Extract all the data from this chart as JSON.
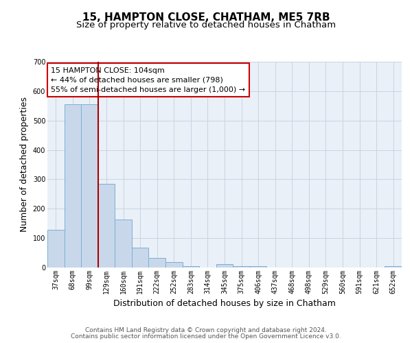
{
  "title": "15, HAMPTON CLOSE, CHATHAM, ME5 7RB",
  "subtitle": "Size of property relative to detached houses in Chatham",
  "xlabel": "Distribution of detached houses by size in Chatham",
  "ylabel": "Number of detached properties",
  "categories": [
    "37sqm",
    "68sqm",
    "99sqm",
    "129sqm",
    "160sqm",
    "191sqm",
    "222sqm",
    "252sqm",
    "283sqm",
    "314sqm",
    "345sqm",
    "375sqm",
    "406sqm",
    "437sqm",
    "468sqm",
    "498sqm",
    "529sqm",
    "560sqm",
    "591sqm",
    "621sqm",
    "652sqm"
  ],
  "values": [
    128,
    555,
    555,
    285,
    163,
    68,
    33,
    18,
    5,
    0,
    11,
    5,
    5,
    0,
    0,
    0,
    0,
    0,
    0,
    0,
    5
  ],
  "bar_color": "#c8d8ea",
  "bar_edge_color": "#7bafd4",
  "vline_color": "#aa0000",
  "vline_x_index": 2.5,
  "annotation_text": "15 HAMPTON CLOSE: 104sqm\n← 44% of detached houses are smaller (798)\n55% of semi-detached houses are larger (1,000) →",
  "annotation_box_color": "#ffffff",
  "annotation_box_edge": "#cc0000",
  "ylim": [
    0,
    700
  ],
  "yticks": [
    0,
    100,
    200,
    300,
    400,
    500,
    600,
    700
  ],
  "footer_line1": "Contains HM Land Registry data © Crown copyright and database right 2024.",
  "footer_line2": "Contains public sector information licensed under the Open Government Licence v3.0.",
  "bg_color": "#ffffff",
  "grid_color": "#c8d4e0",
  "plot_bg_color": "#eaf0f8",
  "title_fontsize": 11,
  "subtitle_fontsize": 9.5,
  "axis_label_fontsize": 9,
  "tick_fontsize": 7,
  "annotation_fontsize": 8,
  "footer_fontsize": 6.5
}
